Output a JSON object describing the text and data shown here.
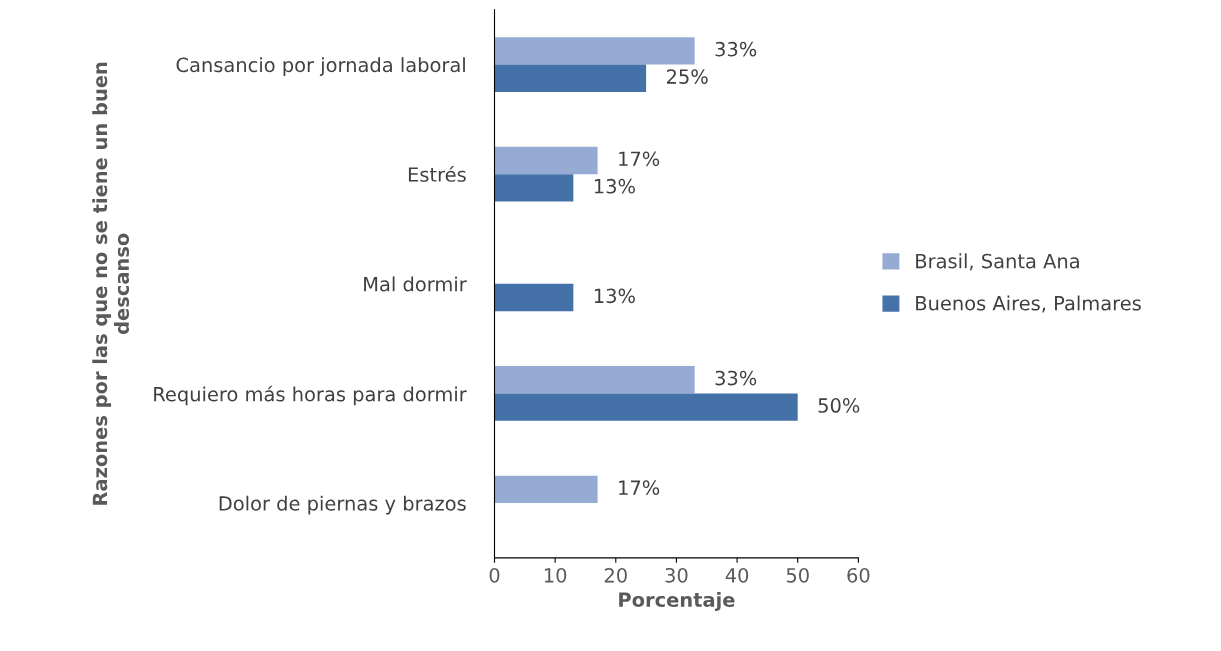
{
  "chart_data": {
    "type": "bar",
    "orientation": "horizontal",
    "categories": [
      "Cansancio por jornada laboral",
      "Estrés",
      "Mal dormir",
      "Requiero más horas para dormir",
      "Dolor de piernas y brazos"
    ],
    "series": [
      {
        "name": "Brasil, Santa Ana",
        "color": "#95abd3",
        "values": [
          33,
          17,
          null,
          33,
          17
        ],
        "value_labels": [
          "33%",
          "17%",
          null,
          "33%",
          "17%"
        ]
      },
      {
        "name": "Buenos Aires, Palmares",
        "color": "#4472a8",
        "values": [
          25,
          13,
          13,
          50,
          null
        ],
        "value_labels": [
          "25%",
          "13%",
          "13%",
          "50%",
          null
        ]
      }
    ],
    "xlabel": "Porcentaje",
    "ylabel": "Razones por las que no se tiene un buen\ndescanso",
    "xlim": [
      0,
      60
    ],
    "xticks": [
      0,
      10,
      20,
      30,
      40,
      50,
      60
    ],
    "grid": false,
    "legend": "right"
  }
}
